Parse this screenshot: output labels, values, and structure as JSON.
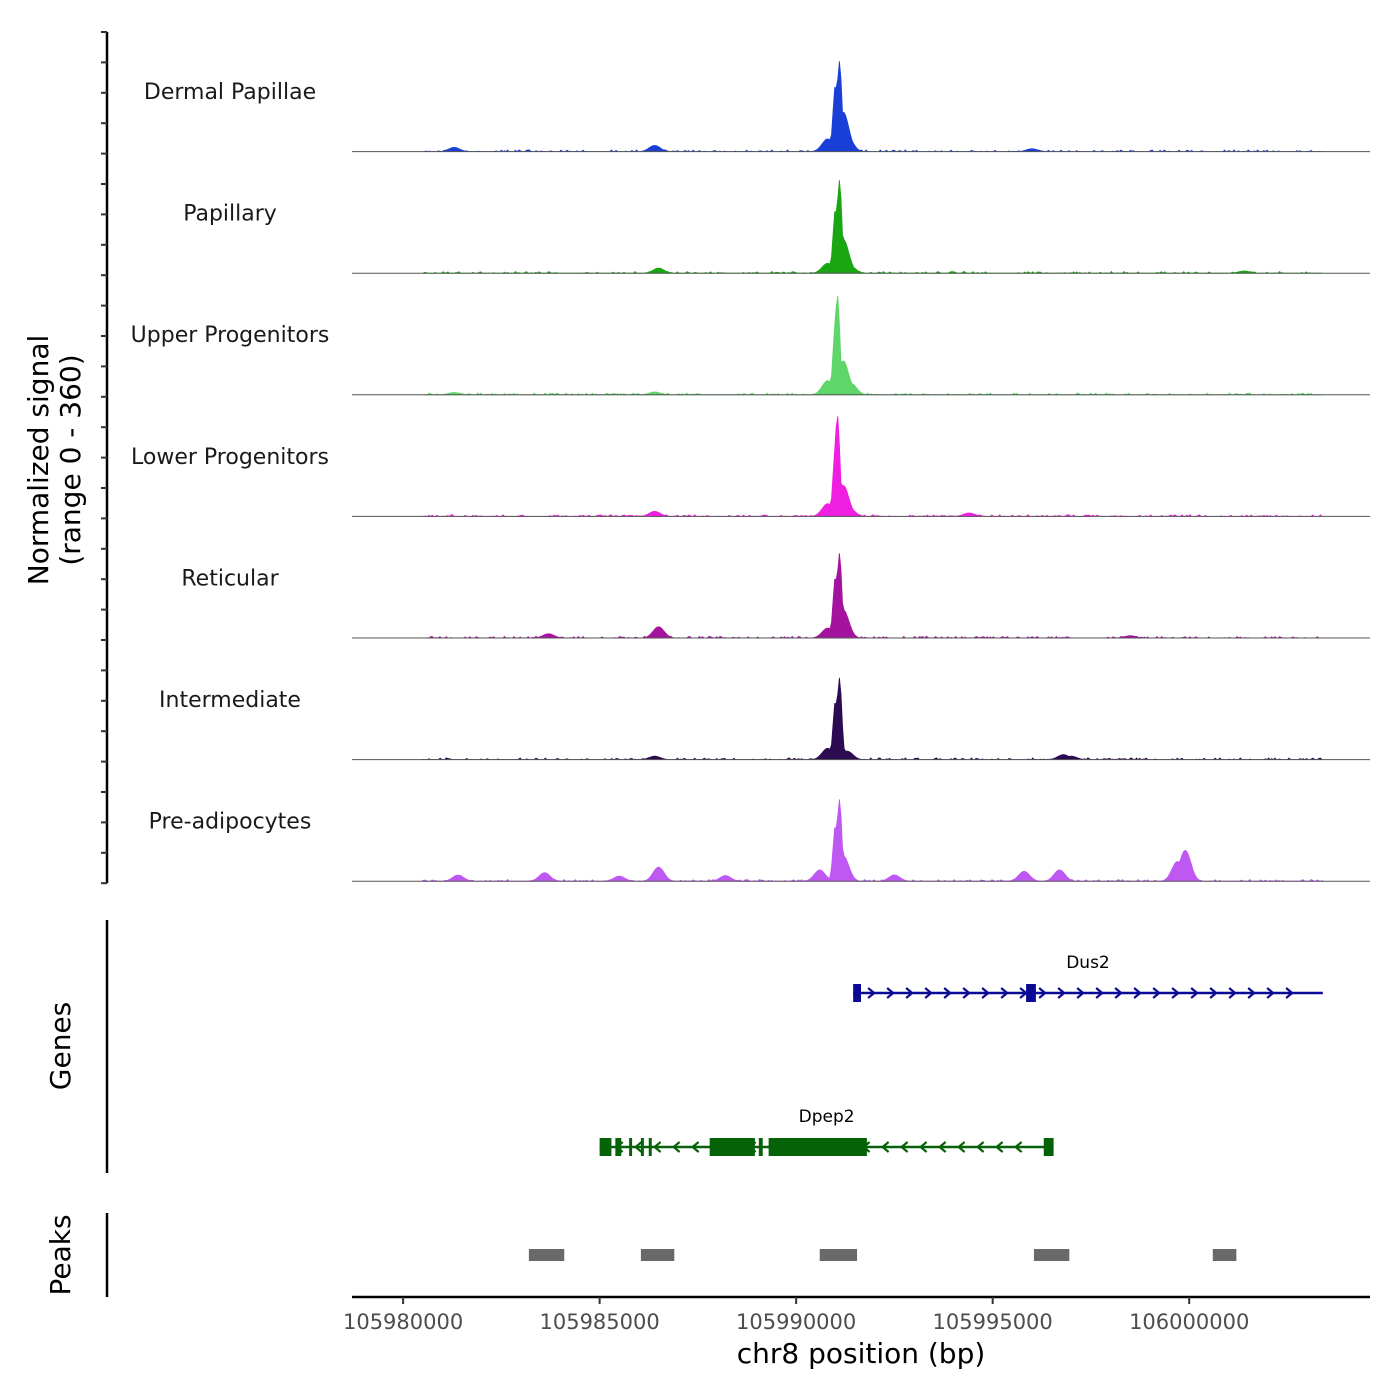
{
  "chart_data": {
    "type": "genome-coverage",
    "title": "",
    "y_axis_title_lines": [
      "Normalized signal",
      "(range 0 - 360)"
    ],
    "y_range": [
      0,
      360
    ],
    "xlabel": "chr8 position (bp)",
    "x_range": [
      105978700,
      106004600
    ],
    "x_ticks": [
      105980000,
      105985000,
      105990000,
      105995000,
      106000000
    ],
    "x_tick_labels": [
      "105980000",
      "105985000",
      "105990000",
      "105995000",
      "106000000"
    ],
    "tracks": [
      {
        "name": "Dermal Papillae",
        "color": "#1a3fd6",
        "peaks": [
          [
            105991100,
            320
          ],
          [
            105991000,
            240
          ],
          [
            105991200,
            140
          ],
          [
            105990800,
            45
          ],
          [
            105991300,
            55
          ],
          [
            105986400,
            22
          ],
          [
            105981300,
            15
          ],
          [
            105996000,
            10
          ]
        ]
      },
      {
        "name": "Papillary",
        "color": "#1aa512",
        "peaks": [
          [
            105991100,
            330
          ],
          [
            105991000,
            230
          ],
          [
            105991200,
            120
          ],
          [
            105990800,
            35
          ],
          [
            105991350,
            30
          ],
          [
            105986500,
            18
          ],
          [
            106001400,
            8
          ]
        ]
      },
      {
        "name": "Upper Progenitors",
        "color": "#5ed66a",
        "peaks": [
          [
            105991050,
            355
          ],
          [
            105991000,
            260
          ],
          [
            105991200,
            120
          ],
          [
            105990800,
            50
          ],
          [
            105991400,
            40
          ],
          [
            105986400,
            10
          ],
          [
            105981300,
            8
          ]
        ]
      },
      {
        "name": "Lower Progenitors",
        "color": "#f01ee0",
        "peaks": [
          [
            105991050,
            360
          ],
          [
            105991000,
            250
          ],
          [
            105991200,
            110
          ],
          [
            105990800,
            45
          ],
          [
            105991350,
            30
          ],
          [
            105986400,
            18
          ],
          [
            105994400,
            12
          ]
        ]
      },
      {
        "name": "Reticular",
        "color": "#a4139e",
        "peaks": [
          [
            105991100,
            300
          ],
          [
            105991000,
            220
          ],
          [
            105991200,
            100
          ],
          [
            105990800,
            35
          ],
          [
            105986500,
            40
          ],
          [
            105983700,
            15
          ],
          [
            105998500,
            8
          ]
        ]
      },
      {
        "name": "Intermediate",
        "color": "#2d0b52",
        "peaks": [
          [
            105991100,
            290
          ],
          [
            105991000,
            210
          ],
          [
            105990800,
            40
          ],
          [
            105991300,
            30
          ],
          [
            105996800,
            18
          ],
          [
            105997000,
            12
          ],
          [
            105986400,
            12
          ]
        ]
      },
      {
        "name": "Pre-adipocytes",
        "color": "#bf58f2",
        "peaks": [
          [
            105991100,
            290
          ],
          [
            105991000,
            200
          ],
          [
            105991200,
            90
          ],
          [
            105990600,
            40
          ],
          [
            105999900,
            110
          ],
          [
            105999700,
            70
          ],
          [
            105986500,
            50
          ],
          [
            105983600,
            30
          ],
          [
            105996700,
            40
          ],
          [
            105995800,
            35
          ],
          [
            105981400,
            22
          ],
          [
            105992500,
            22
          ],
          [
            105988200,
            20
          ],
          [
            105985500,
            18
          ]
        ]
      }
    ],
    "genes": [
      {
        "name": "Dus2",
        "strand": "+",
        "start": 105991450,
        "end": 106003400,
        "color": "#0a0a96",
        "exons": [
          [
            105991450,
            105991650
          ],
          [
            105995850,
            105996100
          ]
        ]
      },
      {
        "name": "Dpep2",
        "strand": "-",
        "start": 105985000,
        "end": 105996550,
        "color": "#066206",
        "exons": [
          [
            105985000,
            105985300
          ],
          [
            105985400,
            105985550
          ],
          [
            105985750,
            105985800
          ],
          [
            105986050,
            105986100
          ],
          [
            105986250,
            105986300
          ],
          [
            105987800,
            105988950
          ],
          [
            105989050,
            105989150
          ],
          [
            105989300,
            105991800
          ],
          [
            105996300,
            105996550
          ]
        ]
      }
    ],
    "genes_label": "Genes",
    "peaks_label": "Peaks",
    "peak_regions": [
      [
        105983200,
        105984100
      ],
      [
        105986050,
        105986900
      ],
      [
        105990600,
        105991550
      ],
      [
        105996050,
        105996950
      ],
      [
        106000600,
        106001200
      ]
    ],
    "peak_color": "#696969"
  }
}
